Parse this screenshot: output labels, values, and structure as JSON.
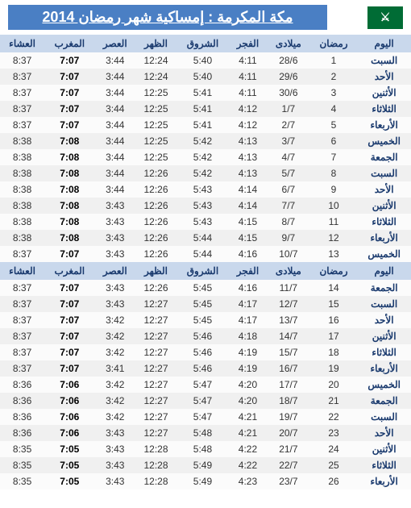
{
  "title": "مكة المكرمة : إمساكية شهر رمضان 2014",
  "columns": [
    "اليوم",
    "رمضان",
    "ميلادى",
    "الفجر",
    "الشروق",
    "الظهر",
    "العصر",
    "المغرب",
    "العشاء"
  ],
  "rows1": [
    [
      "السبت",
      "1",
      "28/6",
      "4:11",
      "5:40",
      "12:24",
      "3:44",
      "7:07",
      "8:37"
    ],
    [
      "الأحد",
      "2",
      "29/6",
      "4:11",
      "5:40",
      "12:24",
      "3:44",
      "7:07",
      "8:37"
    ],
    [
      "الأثنين",
      "3",
      "30/6",
      "4:11",
      "5:41",
      "12:25",
      "3:44",
      "7:07",
      "8:37"
    ],
    [
      "الثلاثاء",
      "4",
      "1/7",
      "4:12",
      "5:41",
      "12:25",
      "3:44",
      "7:07",
      "8:37"
    ],
    [
      "الأربعاء",
      "5",
      "2/7",
      "4:12",
      "5:41",
      "12:25",
      "3:44",
      "7:07",
      "8:37"
    ],
    [
      "الخميس",
      "6",
      "3/7",
      "4:13",
      "5:42",
      "12:25",
      "3:44",
      "7:08",
      "8:38"
    ],
    [
      "الجمعة",
      "7",
      "4/7",
      "4:13",
      "5:42",
      "12:25",
      "3:44",
      "7:08",
      "8:38"
    ],
    [
      "السبت",
      "8",
      "5/7",
      "4:13",
      "5:42",
      "12:26",
      "3:44",
      "7:08",
      "8:38"
    ],
    [
      "الأحد",
      "9",
      "6/7",
      "4:14",
      "5:43",
      "12:26",
      "3:44",
      "7:08",
      "8:38"
    ],
    [
      "الأثنين",
      "10",
      "7/7",
      "4:14",
      "5:43",
      "12:26",
      "3:43",
      "7:08",
      "8:38"
    ],
    [
      "الثلاثاء",
      "11",
      "8/7",
      "4:15",
      "5:43",
      "12:26",
      "3:43",
      "7:08",
      "8:38"
    ],
    [
      "الأربعاء",
      "12",
      "9/7",
      "4:15",
      "5:44",
      "12:26",
      "3:43",
      "7:08",
      "8:38"
    ],
    [
      "الخميس",
      "13",
      "10/7",
      "4:16",
      "5:44",
      "12:26",
      "3:43",
      "7:07",
      "8:37"
    ]
  ],
  "rows2": [
    [
      "الجمعة",
      "14",
      "11/7",
      "4:16",
      "5:45",
      "12:26",
      "3:43",
      "7:07",
      "8:37"
    ],
    [
      "السبت",
      "15",
      "12/7",
      "4:17",
      "5:45",
      "12:27",
      "3:43",
      "7:07",
      "8:37"
    ],
    [
      "الأحد",
      "16",
      "13/7",
      "4:17",
      "5:45",
      "12:27",
      "3:42",
      "7:07",
      "8:37"
    ],
    [
      "الأثنين",
      "17",
      "14/7",
      "4:18",
      "5:46",
      "12:27",
      "3:42",
      "7:07",
      "8:37"
    ],
    [
      "الثلاثاء",
      "18",
      "15/7",
      "4:19",
      "5:46",
      "12:27",
      "3:42",
      "7:07",
      "8:37"
    ],
    [
      "الأربعاء",
      "19",
      "16/7",
      "4:19",
      "5:46",
      "12:27",
      "3:41",
      "7:07",
      "8:37"
    ],
    [
      "الخميس",
      "20",
      "17/7",
      "4:20",
      "5:47",
      "12:27",
      "3:42",
      "7:06",
      "8:36"
    ],
    [
      "الجمعة",
      "21",
      "18/7",
      "4:20",
      "5:47",
      "12:27",
      "3:42",
      "7:06",
      "8:36"
    ],
    [
      "السبت",
      "22",
      "19/7",
      "4:21",
      "5:47",
      "12:27",
      "3:42",
      "7:06",
      "8:36"
    ],
    [
      "الأحد",
      "23",
      "20/7",
      "4:21",
      "5:48",
      "12:27",
      "3:43",
      "7:06",
      "8:36"
    ],
    [
      "الأثنين",
      "24",
      "21/7",
      "4:22",
      "5:48",
      "12:28",
      "3:43",
      "7:05",
      "8:35"
    ],
    [
      "الثلاثاء",
      "25",
      "22/7",
      "4:22",
      "5:49",
      "12:28",
      "3:43",
      "7:05",
      "8:35"
    ],
    [
      "الأربعاء",
      "26",
      "23/7",
      "4:23",
      "5:49",
      "12:28",
      "3:43",
      "7:05",
      "8:35"
    ]
  ],
  "colors": {
    "header_bg": "#c9d8ec",
    "header_fg": "#1a3a6e",
    "title_bg": "#4a7fc4",
    "flag_bg": "#006c35",
    "row_odd": "#fbfbfb",
    "row_even": "#f0f0f0"
  }
}
